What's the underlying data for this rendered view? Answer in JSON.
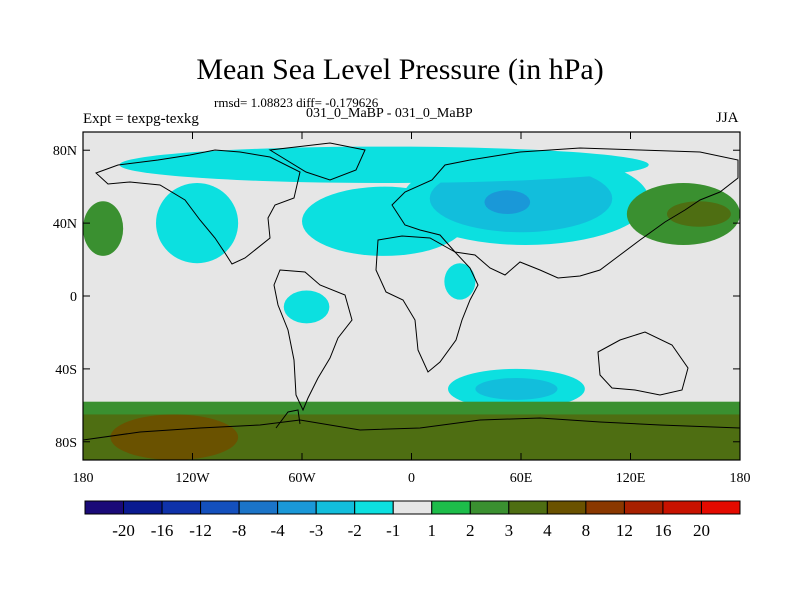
{
  "chart_data": {
    "type": "heatmap",
    "title": "Mean Sea Level Pressure (in hPa)",
    "subtitle": "rmsd= 1.08823 diff= -0.179626",
    "cases": "031_0_MaBP - 031_0_MaBP",
    "experiment": "Expt = texpg-texkg",
    "season": "JJA",
    "x_range": [
      -180,
      180
    ],
    "y_range": [
      -90,
      90
    ],
    "x_ticks": [
      {
        "value": -180,
        "label": "180"
      },
      {
        "value": -120,
        "label": "120W"
      },
      {
        "value": -60,
        "label": "60W"
      },
      {
        "value": 0,
        "label": "0"
      },
      {
        "value": 60,
        "label": "60E"
      },
      {
        "value": 120,
        "label": "120E"
      },
      {
        "value": 180,
        "label": "180"
      }
    ],
    "y_ticks": [
      {
        "value": 80,
        "label": "80N"
      },
      {
        "value": 40,
        "label": "40N"
      },
      {
        "value": 0,
        "label": "0"
      },
      {
        "value": -40,
        "label": "40S"
      },
      {
        "value": -80,
        "label": "80S"
      }
    ],
    "colorbar": {
      "labels": [
        "-20",
        "-16",
        "-12",
        "-8",
        "-4",
        "-3",
        "-2",
        "-1",
        "1",
        "2",
        "3",
        "4",
        "8",
        "12",
        "16",
        "20"
      ],
      "colors": [
        "#1a0a78",
        "#0a1a90",
        "#0f32aa",
        "#1450bd",
        "#1b74c8",
        "#1a98d8",
        "#12bedc",
        "#0ce0e0",
        "#e6e6e6",
        "#1dbd4a",
        "#3a9030",
        "#4e6e12",
        "#6a5200",
        "#8a3800",
        "#a82000",
        "#c81200",
        "#e40a00"
      ]
    },
    "background_color": "#e6e6e6",
    "regions": [
      {
        "name": "north-pacific-high-anomaly",
        "level": "2",
        "lon": [
          -180,
          -158
        ],
        "lat": [
          22,
          52
        ]
      },
      {
        "name": "north-america-low",
        "level": "-1",
        "lon": [
          -140,
          -95
        ],
        "lat": [
          18,
          62
        ]
      },
      {
        "name": "north-atlantic-europe-low",
        "level": "-1",
        "lon": [
          -60,
          30
        ],
        "lat": [
          22,
          60
        ]
      },
      {
        "name": "asia-low",
        "level": "-1",
        "lon": [
          -5,
          130
        ],
        "lat": [
          28,
          78
        ]
      },
      {
        "name": "asia-low-core",
        "level": "-2",
        "lon": [
          10,
          110
        ],
        "lat": [
          35,
          72
        ]
      },
      {
        "name": "asia-low-center",
        "level": "-3",
        "lon": [
          40,
          65
        ],
        "lat": [
          45,
          58
        ]
      },
      {
        "name": "arctic-low",
        "level": "-1",
        "lon": [
          -160,
          130
        ],
        "lat": [
          62,
          82
        ]
      },
      {
        "name": "arabia-africa-low",
        "level": "-1",
        "lon": [
          18,
          35
        ],
        "lat": [
          -2,
          18
        ]
      },
      {
        "name": "south-america-low",
        "level": "-1",
        "lon": [
          -70,
          -45
        ],
        "lat": [
          -15,
          3
        ]
      },
      {
        "name": "indian-ocean-low",
        "level": "-1",
        "lon": [
          20,
          95
        ],
        "lat": [
          -62,
          -40
        ]
      },
      {
        "name": "indian-ocean-low-core",
        "level": "-2",
        "lon": [
          35,
          80
        ],
        "lat": [
          -57,
          -45
        ]
      },
      {
        "name": "north-pacific-high-east",
        "level": "2",
        "lon": [
          118,
          180
        ],
        "lat": [
          28,
          62
        ]
      },
      {
        "name": "north-pacific-high-core",
        "level": "3",
        "lon": [
          140,
          175
        ],
        "lat": [
          38,
          52
        ]
      },
      {
        "name": "southern-ocean-high",
        "level": "2",
        "lon": [
          -180,
          180
        ],
        "lat": [
          -90,
          -58
        ]
      },
      {
        "name": "southern-ocean-high-core",
        "level": "3",
        "lon": [
          -180,
          180
        ],
        "lat": [
          -90,
          -65
        ]
      },
      {
        "name": "pacific-sector-high",
        "level": "4",
        "lon": [
          -165,
          -95
        ],
        "lat": [
          -90,
          -65
        ]
      }
    ]
  }
}
